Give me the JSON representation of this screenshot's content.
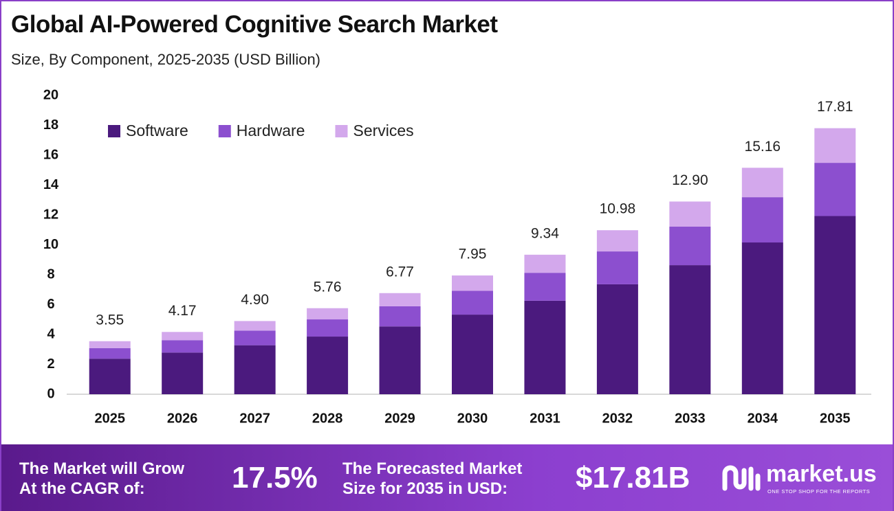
{
  "chart_data": {
    "type": "stacked_bar",
    "title": "Global AI-Powered Cognitive Search Market",
    "subtitle": "Size, By Component, 2025-2035 (USD Billion)",
    "categories": [
      "2025",
      "2026",
      "2027",
      "2028",
      "2029",
      "2030",
      "2031",
      "2032",
      "2033",
      "2034",
      "2035"
    ],
    "series": [
      {
        "name": "Software",
        "color": "#4b1a7e",
        "values": [
          2.38,
          2.79,
          3.28,
          3.86,
          4.54,
          5.33,
          6.26,
          7.36,
          8.64,
          10.16,
          11.93
        ]
      },
      {
        "name": "Hardware",
        "color": "#8c4fcf",
        "values": [
          0.71,
          0.83,
          0.98,
          1.15,
          1.35,
          1.59,
          1.87,
          2.2,
          2.58,
          3.03,
          3.56
        ]
      },
      {
        "name": "Services",
        "color": "#d3a8ec",
        "values": [
          0.46,
          0.55,
          0.64,
          0.75,
          0.88,
          1.03,
          1.21,
          1.42,
          1.68,
          1.97,
          2.32
        ]
      }
    ],
    "totals": {
      "values": [
        3.55,
        4.17,
        4.9,
        5.76,
        6.77,
        7.95,
        9.34,
        10.98,
        12.9,
        15.16,
        17.81
      ],
      "value_labels": [
        "3.55",
        "4.17",
        "4.90",
        "5.76",
        "6.77",
        "7.95",
        "9.34",
        "10.98",
        "12.90",
        "15.16",
        "17.81"
      ]
    },
    "ylim": [
      0,
      20
    ],
    "yticks": [
      0,
      2,
      4,
      6,
      8,
      10,
      12,
      14,
      16,
      18,
      20
    ],
    "grid": false,
    "legend": "top-left"
  },
  "footer": {
    "cagr_text": [
      "The Market will Grow",
      "At the CAGR of:"
    ],
    "cagr_value": "17.5%",
    "forecast_text": [
      "The Forecasted Market",
      "Size for 2035 in USD:"
    ],
    "forecast_value": "$17.81B",
    "brand": "market.us",
    "tagline": "ONE STOP SHOP FOR THE REPORTS"
  }
}
